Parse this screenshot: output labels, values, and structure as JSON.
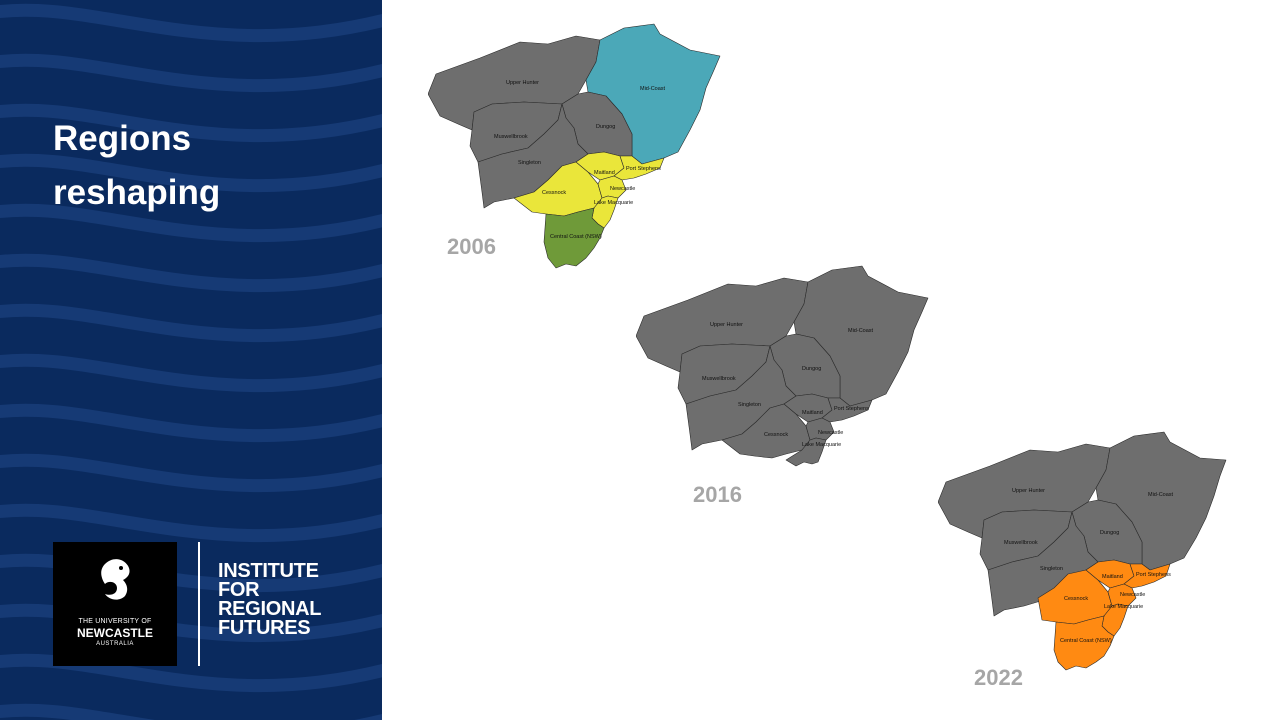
{
  "title": {
    "line1": "Regions",
    "line2": "reshaping"
  },
  "branding": {
    "university": {
      "line1": "THE UNIVERSITY OF",
      "line2": "NEWCASTLE",
      "line3": "AUSTRALIA"
    },
    "institute": {
      "line1": "INSTITUTE",
      "line2": "FOR",
      "line3": "REGIONAL",
      "line4": "FUTURES"
    }
  },
  "colors": {
    "panel": "#0a2a5e",
    "region_default": "#6e6e6e",
    "mid_coast_2006": "#4ba8b8",
    "hunter_2006": "#eae63a",
    "central_coast_2006": "#6f9a39",
    "hunter_2022": "#ff8a12",
    "year_label": "#a6a6a6"
  },
  "maps": [
    {
      "year": "2006",
      "regions": {
        "upper_hunter": "Upper Hunter",
        "mid_coast": "Mid-Coast",
        "muswellbrook": "Muswellbrook",
        "dungog": "Dungog",
        "singleton": "Singleton",
        "maitland": "Maitland",
        "port_stephens": "Port Stephens",
        "cessnock": "Cessnock",
        "newcastle": "Newcastle",
        "lake_macquarie": "Lake Macquarie",
        "central_coast": "Central Coast (NSW)"
      }
    },
    {
      "year": "2016",
      "regions": {
        "upper_hunter": "Upper Hunter",
        "mid_coast": "Mid-Coast",
        "muswellbrook": "Muswellbrook",
        "dungog": "Dungog",
        "singleton": "Singleton",
        "maitland": "Maitland",
        "port_stephens": "Port Stephens",
        "cessnock": "Cessnock",
        "newcastle": "Newcastle",
        "lake_macquarie": "Lake Macquarie"
      }
    },
    {
      "year": "2022",
      "regions": {
        "upper_hunter": "Upper Hunter",
        "mid_coast": "Mid-Coast",
        "muswellbrook": "Muswellbrook",
        "dungog": "Dungog",
        "singleton": "Singleton",
        "maitland": "Maitland",
        "port_stephens": "Port Stephens",
        "cessnock": "Cessnock",
        "newcastle": "Newcastle",
        "lake_macquarie": "Lake Macquarie",
        "central_coast": "Central Coast (NSW)"
      }
    }
  ]
}
